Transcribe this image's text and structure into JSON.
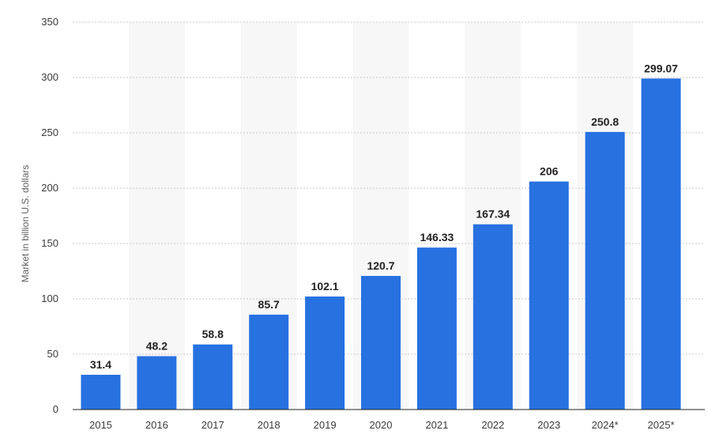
{
  "chart_data": {
    "type": "bar",
    "categories": [
      "2015",
      "2016",
      "2017",
      "2018",
      "2019",
      "2020",
      "2021",
      "2022",
      "2023",
      "2024*",
      "2025*"
    ],
    "values": [
      31.4,
      48.2,
      58.8,
      85.7,
      102.1,
      120.7,
      146.33,
      167.34,
      206,
      250.8,
      299.07
    ],
    "data_labels": [
      "31.4",
      "48.2",
      "58.8",
      "85.7",
      "102.1",
      "120.7",
      "146.33",
      "167.34",
      "206",
      "250.8",
      "299.07"
    ],
    "ylabel": "Market in billion U.S. dollars",
    "ylim": [
      0,
      350
    ],
    "yticks": [
      "0",
      "50",
      "100",
      "150",
      "200",
      "250",
      "300",
      "350"
    ],
    "grid": true,
    "bar_color": "#2771e0",
    "band_color": "#f7f7f7",
    "grid_color": "#c8c8c8"
  }
}
